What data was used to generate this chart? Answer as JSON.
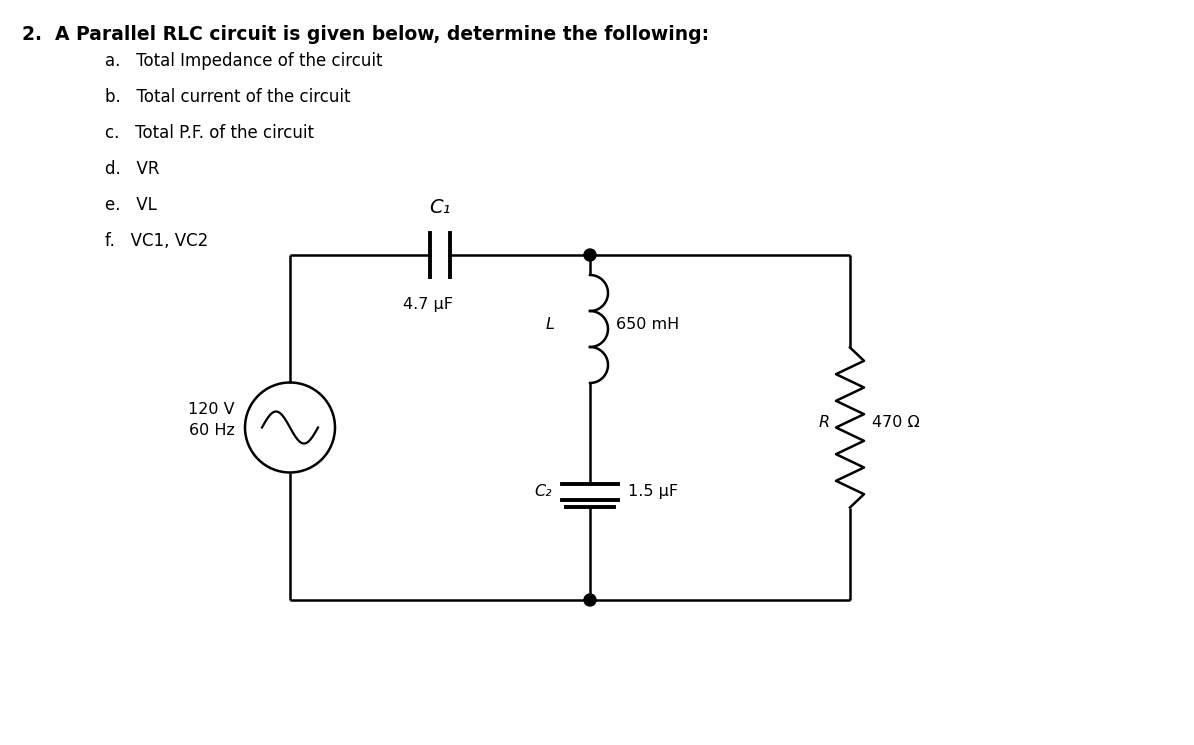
{
  "title": "2.  A Parallel RLC circuit is given below, determine the following:",
  "items": [
    "a.   Total Impedance of the circuit",
    "b.   Total current of the circuit",
    "c.   Total P.F. of the circuit",
    "d.   VR",
    "e.   VL",
    "f.   VC1, VC2"
  ],
  "circuit": {
    "voltage_source": "120 V\n60 Hz",
    "C1_label": "C₁",
    "C1_value": "4.7 μF",
    "L_label": "L",
    "L_value": "650 mH",
    "C2_label": "C₂",
    "C2_value": "1.5 μF",
    "R_label": "R",
    "R_value": "470 Ω"
  },
  "bg_color": "#ffffff",
  "text_color": "#000000",
  "line_color": "#000000",
  "title_fontsize": 13.5,
  "item_fontsize": 12,
  "circuit_fontsize": 11.5
}
